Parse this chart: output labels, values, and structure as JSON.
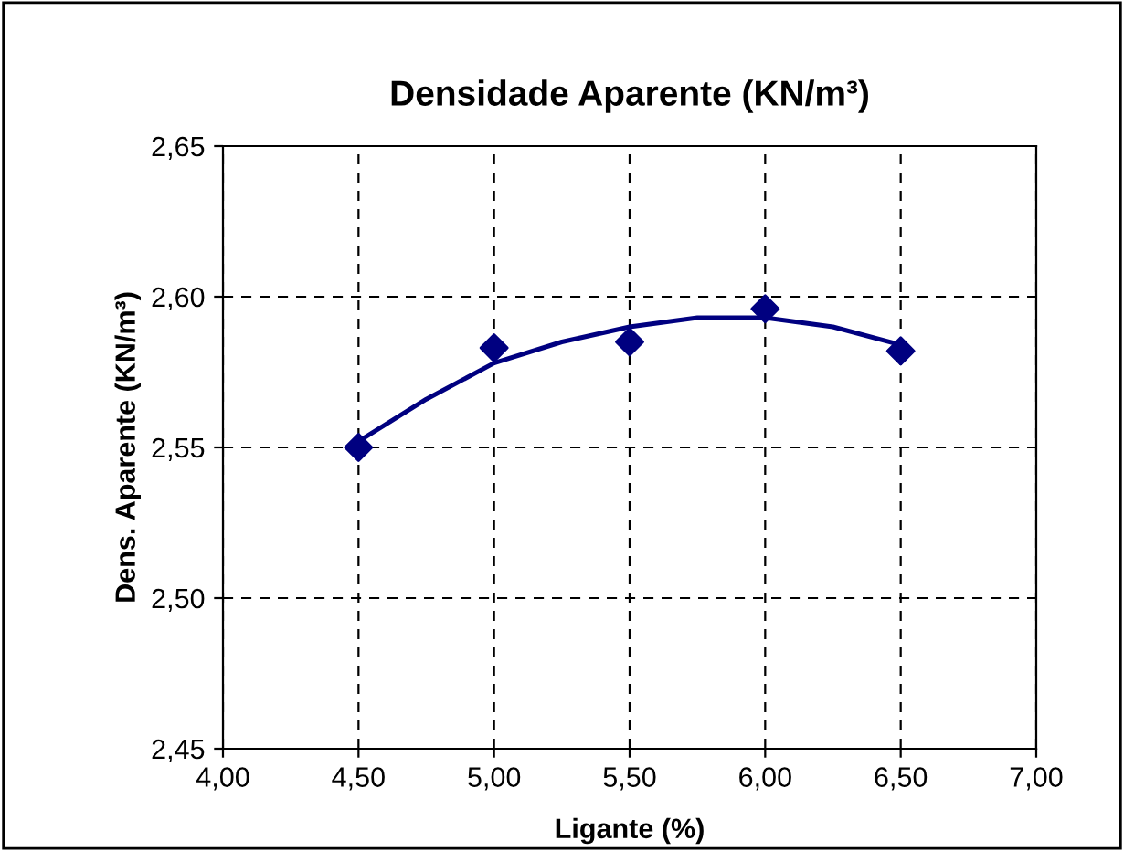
{
  "chart_data": {
    "type": "scatter",
    "title": "Densidade Aparente (KN/m³)",
    "xlabel": "Ligante (%)",
    "ylabel": "Dens. Aparente (KN/m³)",
    "series": [
      {
        "color": "#000080",
        "marker": "diamond",
        "x": [
          4.5,
          5.0,
          5.5,
          6.0,
          6.5
        ],
        "values": [
          2.55,
          2.583,
          2.585,
          2.596,
          2.582
        ]
      },
      {
        "type": "line",
        "color": "#000080",
        "marker": "none",
        "line_style": "solid",
        "x": [
          4.5,
          4.75,
          5.0,
          5.25,
          5.5,
          5.75,
          6.0,
          6.25,
          6.5
        ],
        "values": [
          2.552,
          2.566,
          2.578,
          2.585,
          2.59,
          2.593,
          2.593,
          2.59,
          2.584
        ]
      }
    ],
    "xlim": [
      4.0,
      7.0
    ],
    "xticks": [
      {
        "value": 4.0,
        "label": "4,00"
      },
      {
        "value": 4.5,
        "label": "4,50"
      },
      {
        "value": 5.0,
        "label": "5,00"
      },
      {
        "value": 5.5,
        "label": "5,50"
      },
      {
        "value": 6.0,
        "label": "6,00"
      },
      {
        "value": 6.5,
        "label": "6,50"
      },
      {
        "value": 7.0,
        "label": "7,00"
      }
    ],
    "ylim": [
      2.45,
      2.65
    ],
    "yticks": [
      {
        "value": 2.45,
        "label": "2,45"
      },
      {
        "value": 2.5,
        "label": "2,50"
      },
      {
        "value": 2.55,
        "label": "2,55"
      },
      {
        "value": 2.6,
        "label": "2,60"
      },
      {
        "value": 2.65,
        "label": "2,65"
      }
    ],
    "grid": true
  }
}
